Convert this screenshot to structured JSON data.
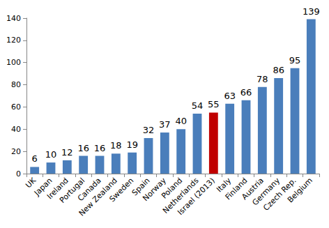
{
  "chart_data": {
    "type": "bar",
    "categories": [
      "UK",
      "Japan",
      "Ireland",
      "Portugal",
      "Canada",
      "New Zealand",
      "Sweden",
      "Spain",
      "Norway",
      "Poland",
      "Netherlands",
      "Israel (2013)",
      "Italy",
      "Finland",
      "Austria",
      "Germany",
      "Czech Rep.",
      "Belgium"
    ],
    "values": [
      6,
      10,
      12,
      16,
      16,
      18,
      19,
      32,
      37,
      40,
      54,
      55,
      63,
      66,
      78,
      86,
      95,
      139
    ],
    "colors": [
      "#4a7ebb",
      "#4a7ebb",
      "#4a7ebb",
      "#4a7ebb",
      "#4a7ebb",
      "#4a7ebb",
      "#4a7ebb",
      "#4a7ebb",
      "#4a7ebb",
      "#4a7ebb",
      "#4a7ebb",
      "#c00000",
      "#4a7ebb",
      "#4a7ebb",
      "#4a7ebb",
      "#4a7ebb",
      "#4a7ebb",
      "#4a7ebb"
    ],
    "ylim": [
      0,
      140
    ],
    "yticks": [
      0,
      20,
      40,
      60,
      80,
      100,
      120,
      140
    ],
    "grid": false,
    "data_labels": true
  }
}
